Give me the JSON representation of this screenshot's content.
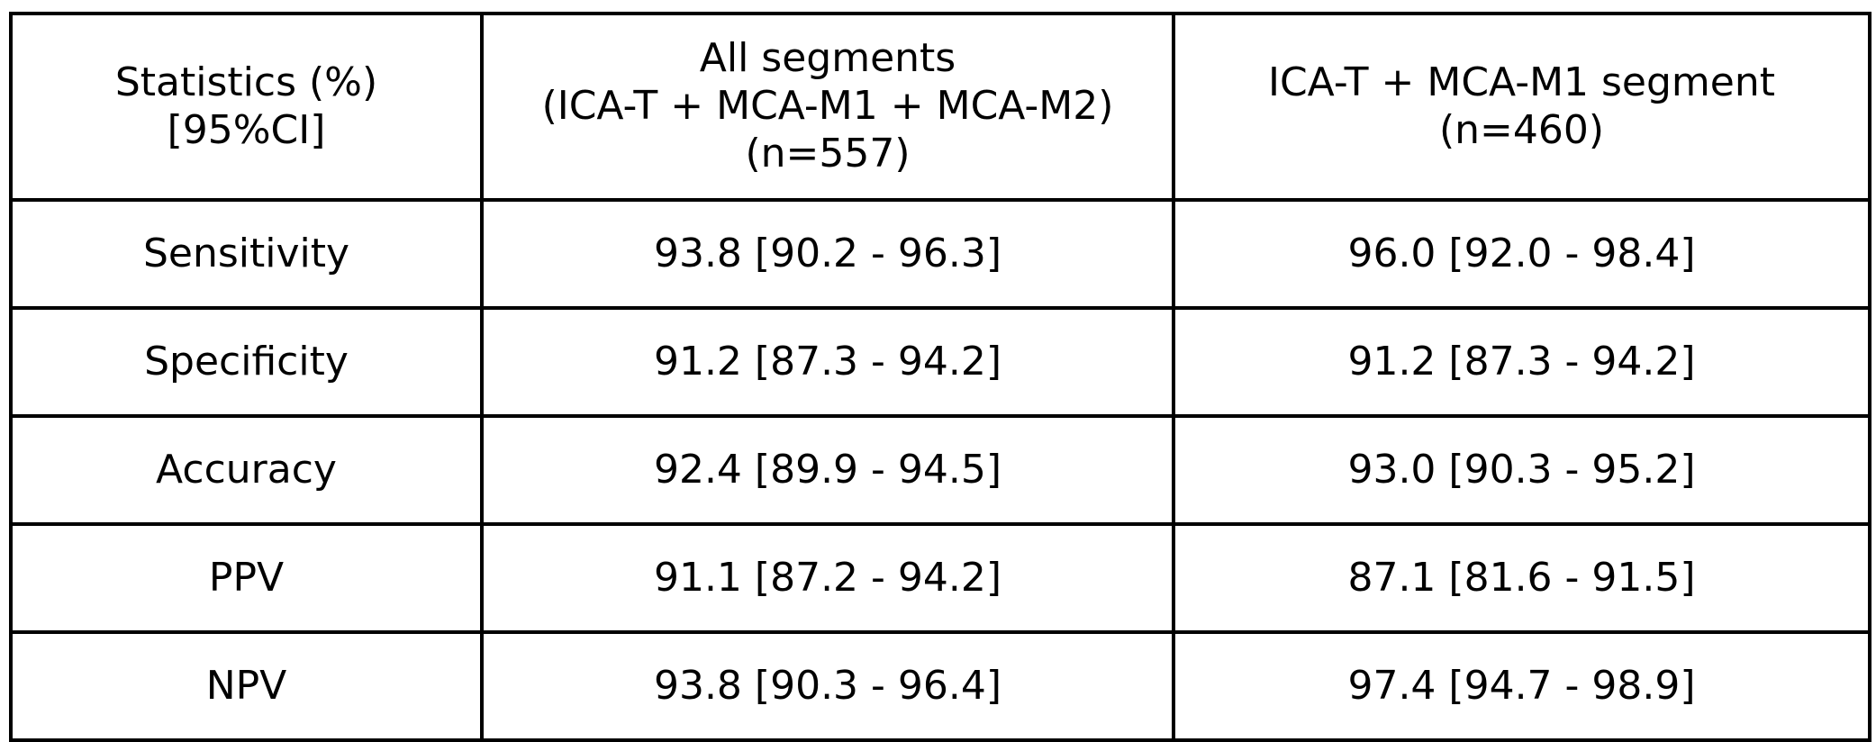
{
  "table": {
    "header": {
      "col1": [
        "Statistics (%)",
        "[95%CI]"
      ],
      "col2": [
        "All segments",
        "(ICA-T + MCA-M1 + MCA-M2)",
        "(n=557)"
      ],
      "col3": [
        "ICA-T + MCA-M1 segment",
        "(n=460)"
      ]
    },
    "rows": [
      {
        "statistic": "Sensitivity",
        "all_segments": "93.8 [90.2 - 96.3]",
        "ica_mca_m1": "96.0 [92.0 - 98.4]"
      },
      {
        "statistic": "Specificity",
        "all_segments": "91.2 [87.3 - 94.2]",
        "ica_mca_m1": "91.2 [87.3 - 94.2]"
      },
      {
        "statistic": "Accuracy",
        "all_segments": "92.4 [89.9 - 94.5]",
        "ica_mca_m1": "93.0 [90.3 - 95.2]"
      },
      {
        "statistic": "PPV",
        "all_segments": "91.1 [87.2 - 94.2]",
        "ica_mca_m1": "87.1 [81.6 - 91.5]"
      },
      {
        "statistic": "NPV",
        "all_segments": "93.8 [90.3 - 96.4]",
        "ica_mca_m1": "97.4 [94.7 - 98.9]"
      }
    ]
  }
}
